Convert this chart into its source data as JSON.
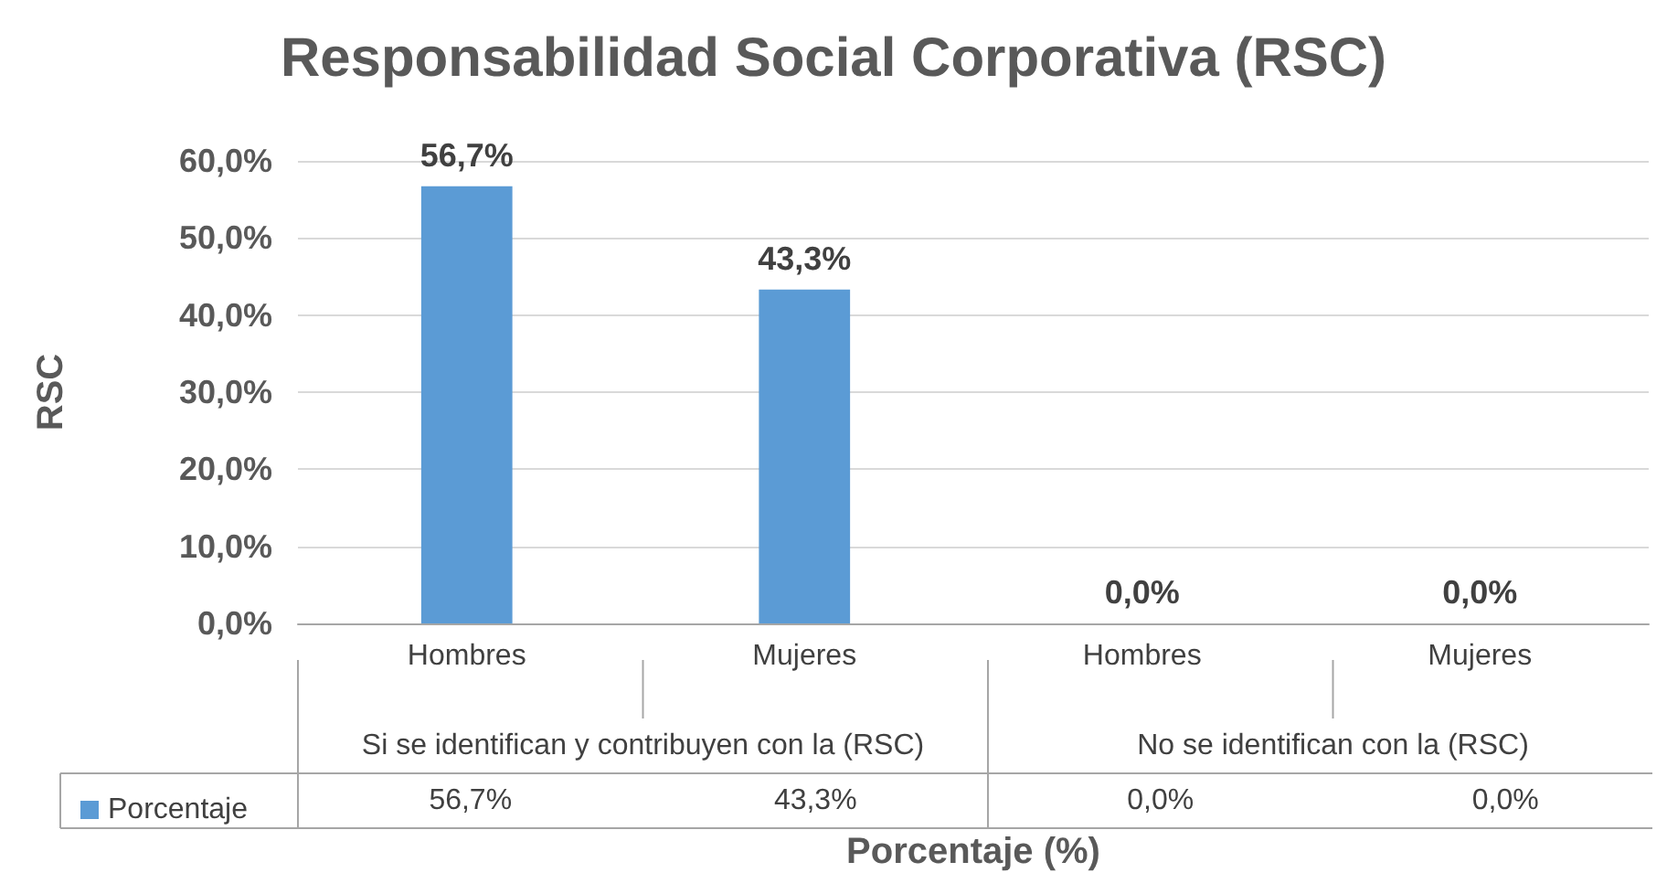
{
  "chart_data": {
    "type": "bar",
    "title": "Responsabilidad Social Corporativa (RSC)",
    "xlabel": "Porcentaje (%)",
    "ylabel": "RSC",
    "categories": [
      "Hombres",
      "Mujeres",
      "Hombres",
      "Mujeres"
    ],
    "series": [
      {
        "name": "Porcentaje",
        "color": "#5b9bd5",
        "values": [
          56.7,
          43.3,
          0,
          0
        ],
        "value_labels": [
          "56,7%",
          "43,3%",
          "0,0%",
          "0,0%"
        ]
      }
    ],
    "annotations": [
      "Si se identifican y contribuyen con la (RSC)",
      "No se identifican con la (RSC)"
    ],
    "ylim": [
      0,
      60
    ],
    "yticks": [
      {
        "value": 0,
        "label": "0,0%"
      },
      {
        "value": 10,
        "label": "10,0%"
      },
      {
        "value": 20,
        "label": "20,0%"
      },
      {
        "value": 30,
        "label": "30,0%"
      },
      {
        "value": 40,
        "label": "40,0%"
      },
      {
        "value": 50,
        "label": "50,0%"
      },
      {
        "value": 60,
        "label": "60,0%"
      }
    ],
    "grid": "y",
    "legend": "bottom left"
  }
}
